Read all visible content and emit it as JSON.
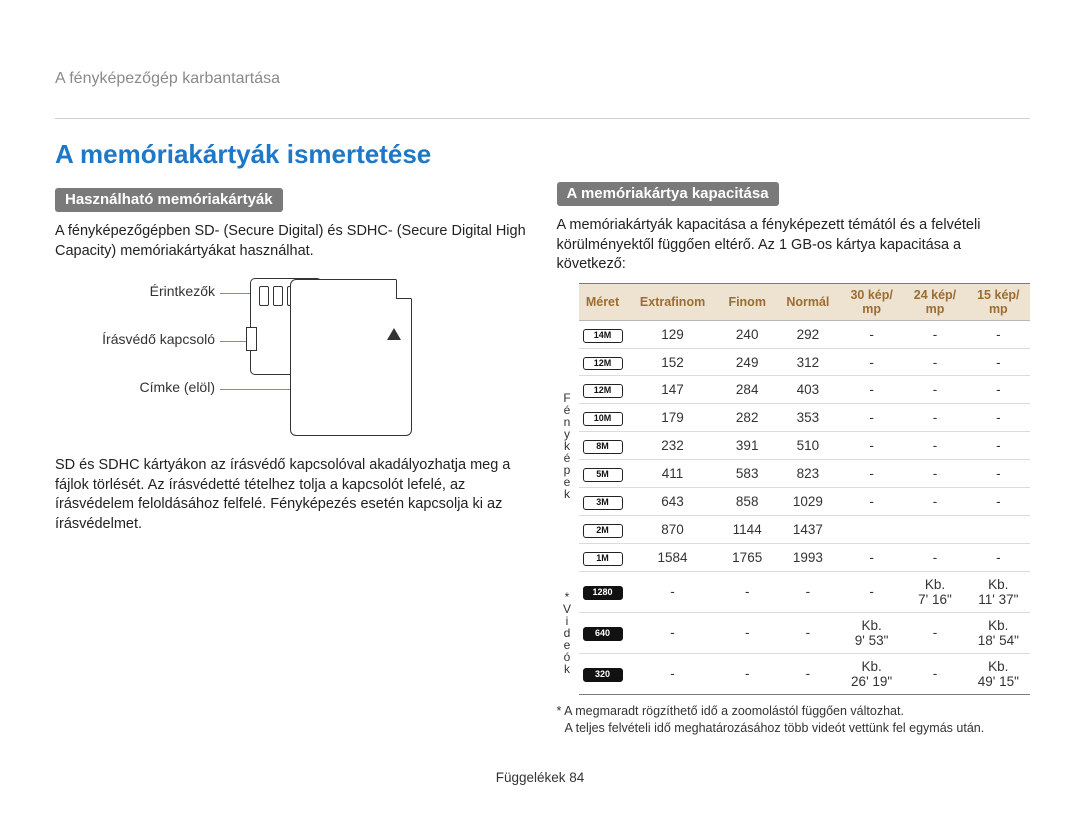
{
  "header": {
    "breadcrumb": "A fényképezőgép karbantartása"
  },
  "left": {
    "title": "A memóriakártyák ismertetése",
    "section1_label": "Használható memóriakártyák",
    "section1_para1": "A fényképezőgépben SD- (Secure Digital) és SDHC- (Secure Digital High Capacity) memóriakártyákat használhat.",
    "diagram": {
      "label_contacts": "Érintkezők",
      "label_switch": "Írásvédő kapcsoló",
      "label_front": "Címke (elöl)"
    },
    "section1_para2": "SD és SDHC kártyákon az írásvédő kapcsolóval akadályozhatja meg a fájlok törlését. Az írásvédetté tételhez tolja a kapcsolót lefelé, az írásvédelem feloldásához felfelé. Fényképezés esetén kapcsolja ki az írásvédelmet."
  },
  "right": {
    "section_label": "A memóriakártya kapacitása",
    "intro": "A memóriakártyák kapacitása a fényképezett témától és a felvételi körülményektől függően eltérő. Az 1 GB-os kártya kapacitása a következő:",
    "table": {
      "headers": [
        "Méret",
        "Extrafinom",
        "Finom",
        "Normál",
        "30 kép/\nmp",
        "24 kép/\nmp",
        "15 kép/\nmp"
      ],
      "group_photo_label": "F é n y k é p e k",
      "group_video_label": "* V i d e ó k",
      "photo_rows": [
        {
          "icon": "14M",
          "extra": "129",
          "finom": "240",
          "norm": "292",
          "c30": "-",
          "c24": "-",
          "c15": "-"
        },
        {
          "icon": "12M",
          "extra": "152",
          "finom": "249",
          "norm": "312",
          "c30": "-",
          "c24": "-",
          "c15": "-"
        },
        {
          "icon": "12M",
          "extra": "147",
          "finom": "284",
          "norm": "403",
          "c30": "-",
          "c24": "-",
          "c15": "-"
        },
        {
          "icon": "10M",
          "extra": "179",
          "finom": "282",
          "norm": "353",
          "c30": "-",
          "c24": "-",
          "c15": "-"
        },
        {
          "icon": "8M",
          "extra": "232",
          "finom": "391",
          "norm": "510",
          "c30": "-",
          "c24": "-",
          "c15": "-"
        },
        {
          "icon": "5M",
          "extra": "411",
          "finom": "583",
          "norm": "823",
          "c30": "-",
          "c24": "-",
          "c15": "-"
        },
        {
          "icon": "3M",
          "extra": "643",
          "finom": "858",
          "norm": "1029",
          "c30": "-",
          "c24": "-",
          "c15": "-"
        },
        {
          "icon": "2M",
          "extra": "870",
          "finom": "1144",
          "norm": "1437",
          "c30": "",
          "c24": "",
          "c15": ""
        },
        {
          "icon": "1M",
          "extra": "1584",
          "finom": "1765",
          "norm": "1993",
          "c30": "-",
          "c24": "-",
          "c15": "-"
        }
      ],
      "video_rows": [
        {
          "icon": "1280",
          "extra": "-",
          "finom": "-",
          "norm": "-",
          "c30": "-",
          "c24": "Kb.\n7' 16\"",
          "c15": "Kb.\n11' 37\""
        },
        {
          "icon": "640",
          "extra": "-",
          "finom": "-",
          "norm": "-",
          "c30": "Kb.\n9' 53\"",
          "c24": "-",
          "c15": "Kb.\n18' 54\""
        },
        {
          "icon": "320",
          "extra": "-",
          "finom": "-",
          "norm": "-",
          "c30": "Kb.\n26' 19\"",
          "c24": "-",
          "c15": "Kb.\n49' 15\""
        }
      ]
    },
    "footnote1": "* A megmaradt rögzíthető idő a zoomolástól függően változhat.",
    "footnote2": "A teljes felvételi idő meghatározásához több videót vettünk fel egymás után."
  },
  "footer": {
    "text": "Függelékek  84"
  },
  "colors": {
    "accent_line": "#d77a2b",
    "title_blue": "#1e78c8",
    "pill_bg": "#7a7a7a",
    "th_bg": "#ede3d0",
    "th_text": "#9c6d32"
  }
}
